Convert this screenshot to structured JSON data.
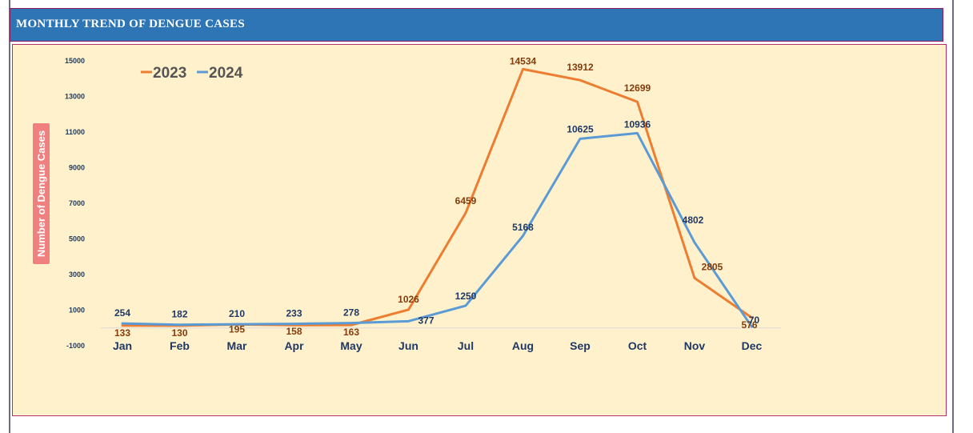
{
  "header": {
    "title": "MONTHLY TREND OF DENGUE CASES"
  },
  "colors": {
    "series_2023": "#ed7d31",
    "series_2024": "#5b9bd5",
    "title_bar": "#2e75b6",
    "panel": "#fff1cc"
  },
  "chart_data": {
    "type": "line",
    "title": "MONTHLY TREND OF DENGUE CASES",
    "xlabel": "",
    "ylabel": "Number of Dengue Cases",
    "ylim": [
      -1000,
      15000
    ],
    "yticks": [
      -1000,
      1000,
      3000,
      5000,
      7000,
      9000,
      11000,
      13000,
      15000
    ],
    "categories": [
      "Jan",
      "Feb",
      "Mar",
      "Apr",
      "May",
      "Jun",
      "Jul",
      "Aug",
      "Sep",
      "Oct",
      "Nov",
      "Dec"
    ],
    "legend_position": "top-left",
    "grid": false,
    "series": [
      {
        "name": "2023",
        "values": [
          133,
          130,
          195,
          158,
          163,
          1026,
          6459,
          14534,
          13912,
          12699,
          2805,
          576
        ]
      },
      {
        "name": "2024",
        "values": [
          254,
          182,
          210,
          233,
          278,
          377,
          1250,
          5168,
          10625,
          10936,
          4802,
          70
        ]
      }
    ]
  }
}
